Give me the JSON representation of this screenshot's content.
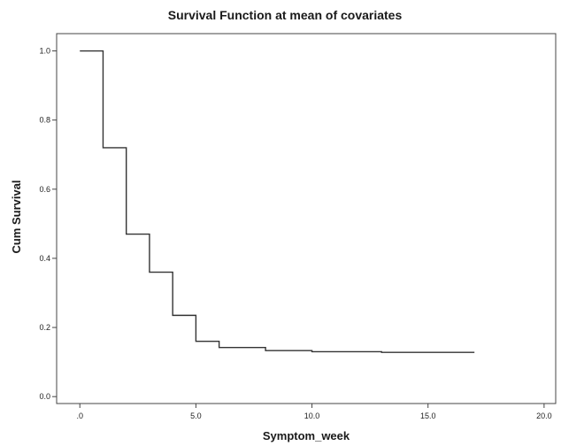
{
  "chart_data": {
    "type": "line",
    "title": "Survival Function at mean of covariates",
    "xlabel": "Symptom_week",
    "ylabel": "Cum Survival",
    "xlim": [
      -1,
      20.5
    ],
    "ylim": [
      -0.02,
      1.05
    ],
    "xticks": [
      0,
      5,
      10,
      15,
      20
    ],
    "xtick_labels": [
      ".0",
      "5.0",
      "10.0",
      "15.0",
      "20.0"
    ],
    "yticks": [
      0,
      0.2,
      0.4,
      0.6,
      0.8,
      1.0
    ],
    "ytick_labels": [
      "0.0",
      "0.2",
      "0.4",
      "0.6",
      "0.8",
      "1.0"
    ],
    "grid": false,
    "step": true,
    "series": [
      {
        "x": [
          0,
          1,
          2,
          3,
          4,
          5,
          6,
          8,
          10,
          13,
          17
        ],
        "y": [
          1.0,
          0.72,
          0.47,
          0.36,
          0.235,
          0.16,
          0.142,
          0.133,
          0.13,
          0.128,
          0.128
        ]
      }
    ],
    "colors": {
      "line": "#333333",
      "frame": "#444444"
    }
  }
}
